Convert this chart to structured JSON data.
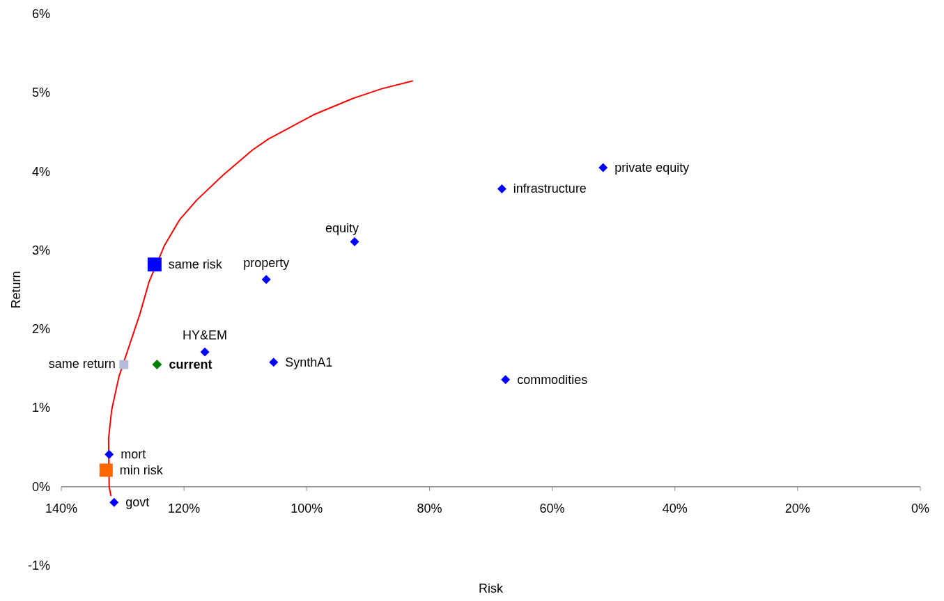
{
  "chart_data": {
    "type": "scatter",
    "xlabel": "Risk",
    "ylabel": "Return",
    "xlim": [
      140,
      0
    ],
    "xticks": [
      {
        "value": 140,
        "label": "140%"
      },
      {
        "value": 120,
        "label": "120%"
      },
      {
        "value": 100,
        "label": "100%"
      },
      {
        "value": 80,
        "label": "80%"
      },
      {
        "value": 60,
        "label": "60%"
      },
      {
        "value": 40,
        "label": "40%"
      },
      {
        "value": 20,
        "label": "20%"
      },
      {
        "value": 0,
        "label": "0%"
      }
    ],
    "ylim": [
      -1,
      6
    ],
    "yticks": [
      {
        "value": -1,
        "label": "-1%"
      },
      {
        "value": 0,
        "label": "0%"
      },
      {
        "value": 1,
        "label": "1%"
      },
      {
        "value": 2,
        "label": "2%"
      },
      {
        "value": 3,
        "label": "3%"
      },
      {
        "value": 4,
        "label": "4%"
      },
      {
        "value": 5,
        "label": "5%"
      },
      {
        "value": 6,
        "label": "6%"
      }
    ],
    "grid": false,
    "legend": false,
    "series": [
      {
        "type": "line",
        "color": "#ff0000",
        "marker": "none",
        "x": [
          131.9,
          132.2,
          132.3,
          131.8,
          130.6,
          127.2,
          125.7,
          123.2,
          120.7,
          117.9,
          113.7,
          108.9,
          106.3,
          98.9,
          92.4,
          87.8,
          82.7
        ],
        "values": [
          -0.12,
          0,
          0.61,
          0.97,
          1.4,
          2.19,
          2.6,
          3.06,
          3.39,
          3.64,
          3.95,
          4.27,
          4.41,
          4.72,
          4.93,
          5.05,
          5.15
        ]
      },
      {
        "name": "govt",
        "color": "#0000ff",
        "marker": "diamond",
        "x": [
          131.4
        ],
        "values": [
          -0.2
        ]
      },
      {
        "name": "mort",
        "color": "#0000ff",
        "marker": "diamond",
        "x": [
          132.2
        ],
        "values": [
          0.41
        ]
      },
      {
        "name": "HY&EM",
        "color": "#0000ff",
        "marker": "diamond",
        "x": [
          116.6
        ],
        "values": [
          1.71
        ]
      },
      {
        "name": "SynthA1",
        "color": "#0000ff",
        "marker": "diamond",
        "x": [
          105.4
        ],
        "values": [
          1.58
        ]
      },
      {
        "name": "property",
        "color": "#0000ff",
        "marker": "diamond",
        "x": [
          106.6
        ],
        "values": [
          2.63
        ]
      },
      {
        "name": "equity",
        "color": "#0000ff",
        "marker": "diamond",
        "x": [
          92.2
        ],
        "values": [
          3.11
        ]
      },
      {
        "name": "infrastructure",
        "color": "#0000ff",
        "marker": "diamond",
        "x": [
          68.2
        ],
        "values": [
          3.78
        ]
      },
      {
        "name": "private equity",
        "color": "#0000ff",
        "marker": "diamond",
        "x": [
          51.7
        ],
        "values": [
          4.05
        ]
      },
      {
        "name": "commodities",
        "color": "#0000ff",
        "marker": "diamond",
        "x": [
          67.6
        ],
        "values": [
          1.36
        ]
      },
      {
        "name": "current",
        "color": "#008000",
        "marker": "diamond",
        "x": [
          124.4
        ],
        "values": [
          1.55
        ]
      },
      {
        "name": "same risk",
        "color": "#0000ff",
        "marker": "square",
        "x": [
          124.8
        ],
        "values": [
          2.82
        ]
      },
      {
        "name": "same return",
        "color": "#b4bcdc",
        "marker": "square",
        "x": [
          129.8
        ],
        "values": [
          1.55
        ]
      },
      {
        "name": "min risk",
        "color": "#ff6600",
        "marker": "square",
        "x": [
          132.7
        ],
        "values": [
          0.21
        ]
      }
    ]
  }
}
